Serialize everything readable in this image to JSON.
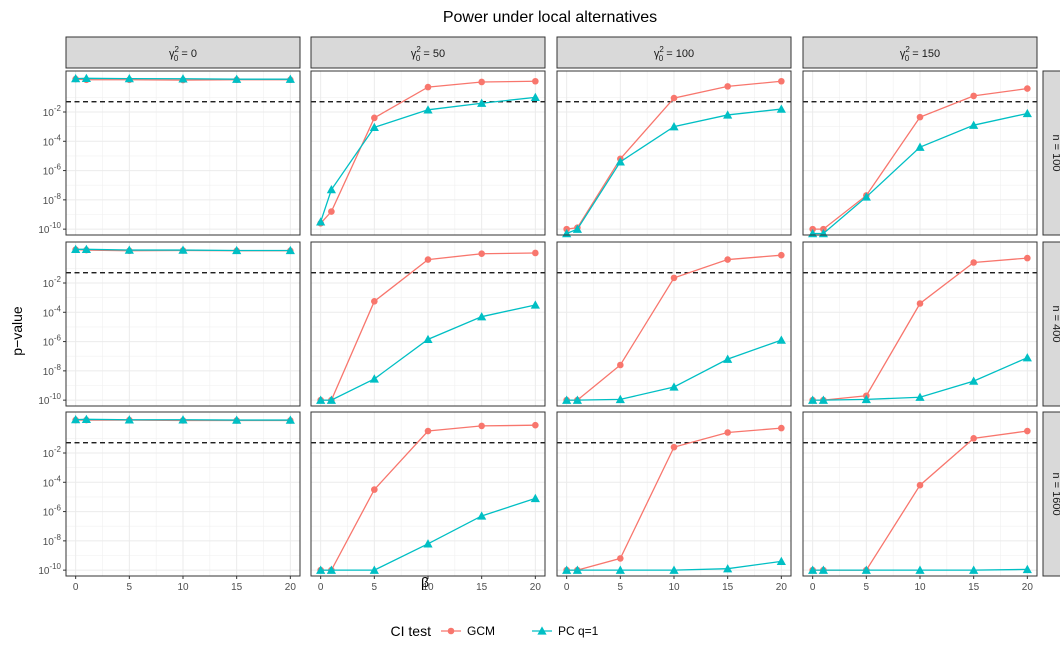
{
  "chart_data": {
    "type": "line",
    "title": "Power under local alternatives",
    "xlabel": "β",
    "ylabel": "p−value",
    "x": [
      0,
      1,
      5,
      10,
      15,
      20
    ],
    "x_ticks": [
      0,
      5,
      10,
      15,
      20
    ],
    "x_tick_labels": [
      "0",
      "5",
      "10",
      "15",
      "20"
    ],
    "xlim": [
      -0.9,
      20.9
    ],
    "y_scale": "log10",
    "ylim_log10": [
      -10.4,
      0.8
    ],
    "y_ticks_log10": [
      -10,
      -8,
      -6,
      -4,
      -2
    ],
    "y_tick_labels": [
      {
        "base": "10",
        "exp": "-10"
      },
      {
        "base": "10",
        "exp": "-8"
      },
      {
        "base": "10",
        "exp": "-6"
      },
      {
        "base": "10",
        "exp": "-4"
      },
      {
        "base": "10",
        "exp": "-2"
      }
    ],
    "reference_line": {
      "value": 0.05,
      "style": "dashed"
    },
    "grid": true,
    "columns": [
      {
        "label_prefix": "γ",
        "label_exp": "2",
        "label_sub": "0",
        "label_suffix": " = 0"
      },
      {
        "label_prefix": "γ",
        "label_exp": "2",
        "label_sub": "0",
        "label_suffix": " = 50"
      },
      {
        "label_prefix": "γ",
        "label_exp": "2",
        "label_sub": "0",
        "label_suffix": " = 100"
      },
      {
        "label_prefix": "γ",
        "label_exp": "2",
        "label_sub": "0",
        "label_suffix": " = 150"
      }
    ],
    "rows": [
      {
        "label": "n = 100"
      },
      {
        "label": "n = 400"
      },
      {
        "label": "n = 1600"
      }
    ],
    "series_meta": [
      {
        "name": "GCM",
        "color": "#F8766D",
        "marker": "circle"
      },
      {
        "name": "PC q=1",
        "color": "#00BFC4",
        "marker": "triangle"
      }
    ],
    "panels": [
      {
        "row": 0,
        "col": 0,
        "series": [
          {
            "name": "GCM",
            "log10_values": [
              0.25,
              0.2,
              0.2,
              0.18,
              0.2,
              0.2
            ]
          },
          {
            "name": "PC q=1",
            "log10_values": [
              0.28,
              0.3,
              0.28,
              0.27,
              0.24,
              0.24
            ]
          }
        ]
      },
      {
        "row": 0,
        "col": 1,
        "series": [
          {
            "name": "GCM",
            "log10_values": [
              -9.6,
              -8.8,
              -2.4,
              -0.3,
              0.05,
              0.1
            ]
          },
          {
            "name": "PC q=1",
            "log10_values": [
              -9.5,
              -7.3,
              -3.05,
              -1.85,
              -1.4,
              -1.0
            ]
          }
        ]
      },
      {
        "row": 0,
        "col": 2,
        "series": [
          {
            "name": "GCM",
            "log10_values": [
              -10.0,
              -9.9,
              -5.2,
              -1.05,
              -0.25,
              0.1
            ]
          },
          {
            "name": "PC q=1",
            "log10_values": [
              -10.3,
              -10.0,
              -5.4,
              -3.0,
              -2.2,
              -1.8
            ]
          }
        ]
      },
      {
        "row": 0,
        "col": 3,
        "series": [
          {
            "name": "GCM",
            "log10_values": [
              -10.0,
              -10.0,
              -7.7,
              -2.35,
              -0.9,
              -0.4
            ]
          },
          {
            "name": "PC q=1",
            "log10_values": [
              -10.3,
              -10.3,
              -7.8,
              -4.4,
              -2.9,
              -2.1
            ]
          }
        ]
      },
      {
        "row": 1,
        "col": 0,
        "series": [
          {
            "name": "GCM",
            "log10_values": [
              0.28,
              0.25,
              0.2,
              0.22,
              0.2,
              0.2
            ]
          },
          {
            "name": "PC q=1",
            "log10_values": [
              0.3,
              0.3,
              0.25,
              0.25,
              0.22,
              0.22
            ]
          }
        ]
      },
      {
        "row": 1,
        "col": 1,
        "series": [
          {
            "name": "GCM",
            "log10_values": [
              -10.0,
              -10.0,
              -3.25,
              -0.4,
              0.0,
              0.05
            ]
          },
          {
            "name": "PC q=1",
            "log10_values": [
              -10.0,
              -10.0,
              -8.55,
              -5.85,
              -4.3,
              -3.5
            ]
          }
        ]
      },
      {
        "row": 1,
        "col": 2,
        "series": [
          {
            "name": "GCM",
            "log10_values": [
              -10.0,
              -10.0,
              -7.6,
              -1.65,
              -0.4,
              -0.1
            ]
          },
          {
            "name": "PC q=1",
            "log10_values": [
              -10.0,
              -10.0,
              -9.95,
              -9.1,
              -7.2,
              -5.9
            ]
          }
        ]
      },
      {
        "row": 1,
        "col": 3,
        "series": [
          {
            "name": "GCM",
            "log10_values": [
              -10.0,
              -10.0,
              -9.7,
              -3.4,
              -0.6,
              -0.3
            ]
          },
          {
            "name": "PC q=1",
            "log10_values": [
              -10.0,
              -10.0,
              -9.95,
              -9.8,
              -8.7,
              -7.1
            ]
          }
        ]
      },
      {
        "row": 2,
        "col": 0,
        "series": [
          {
            "name": "GCM",
            "log10_values": [
              0.25,
              0.25,
              0.25,
              0.22,
              0.22,
              0.22
            ]
          },
          {
            "name": "PC q=1",
            "log10_values": [
              0.28,
              0.3,
              0.27,
              0.27,
              0.25,
              0.25
            ]
          }
        ]
      },
      {
        "row": 2,
        "col": 1,
        "series": [
          {
            "name": "GCM",
            "log10_values": [
              -10.0,
              -10.0,
              -4.5,
              -0.5,
              -0.15,
              -0.1
            ]
          },
          {
            "name": "PC q=1",
            "log10_values": [
              -10.0,
              -10.0,
              -10.0,
              -8.2,
              -6.3,
              -5.1
            ]
          }
        ]
      },
      {
        "row": 2,
        "col": 2,
        "series": [
          {
            "name": "GCM",
            "log10_values": [
              -10.0,
              -10.0,
              -9.2,
              -1.6,
              -0.6,
              -0.3
            ]
          },
          {
            "name": "PC q=1",
            "log10_values": [
              -10.0,
              -10.0,
              -10.0,
              -10.0,
              -9.9,
              -9.4
            ]
          }
        ]
      },
      {
        "row": 2,
        "col": 3,
        "series": [
          {
            "name": "GCM",
            "log10_values": [
              -10.0,
              -10.0,
              -10.0,
              -4.2,
              -1.0,
              -0.5
            ]
          },
          {
            "name": "PC q=1",
            "log10_values": [
              -10.0,
              -10.0,
              -10.0,
              -10.0,
              -10.0,
              -9.95
            ]
          }
        ]
      }
    ],
    "legend": {
      "title": "CI test",
      "position": "bottom",
      "entries": [
        "GCM",
        "PC q=1"
      ]
    }
  }
}
